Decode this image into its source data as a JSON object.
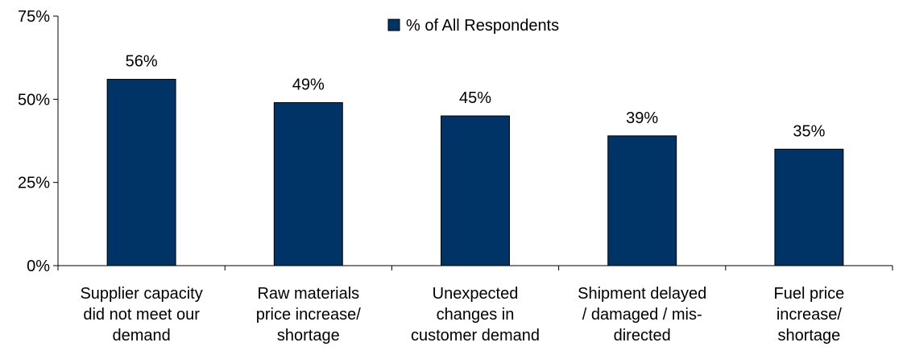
{
  "chart_data": {
    "type": "bar",
    "categories": [
      [
        "Supplier capacity",
        "did not meet our",
        "demand"
      ],
      [
        "Raw materials",
        "price increase/",
        "shortage"
      ],
      [
        "Unexpected",
        "changes in",
        "customer demand"
      ],
      [
        "Shipment delayed",
        "/ damaged / mis-",
        "directed"
      ],
      [
        "Fuel price",
        "increase/",
        "shortage"
      ]
    ],
    "series": [
      {
        "name": "% of All Respondents",
        "values": [
          56,
          49,
          45,
          39,
          35
        ],
        "labels": [
          "56%",
          "49%",
          "45%",
          "39%",
          "35%"
        ],
        "color": "#003366"
      }
    ],
    "ylim": [
      0,
      75
    ],
    "yticks": [
      {
        "value": 0,
        "label": "0%"
      },
      {
        "value": 25,
        "label": "25%"
      },
      {
        "value": 50,
        "label": "50%"
      },
      {
        "value": 75,
        "label": "75%"
      }
    ],
    "grid": false,
    "legend": "top-center"
  }
}
